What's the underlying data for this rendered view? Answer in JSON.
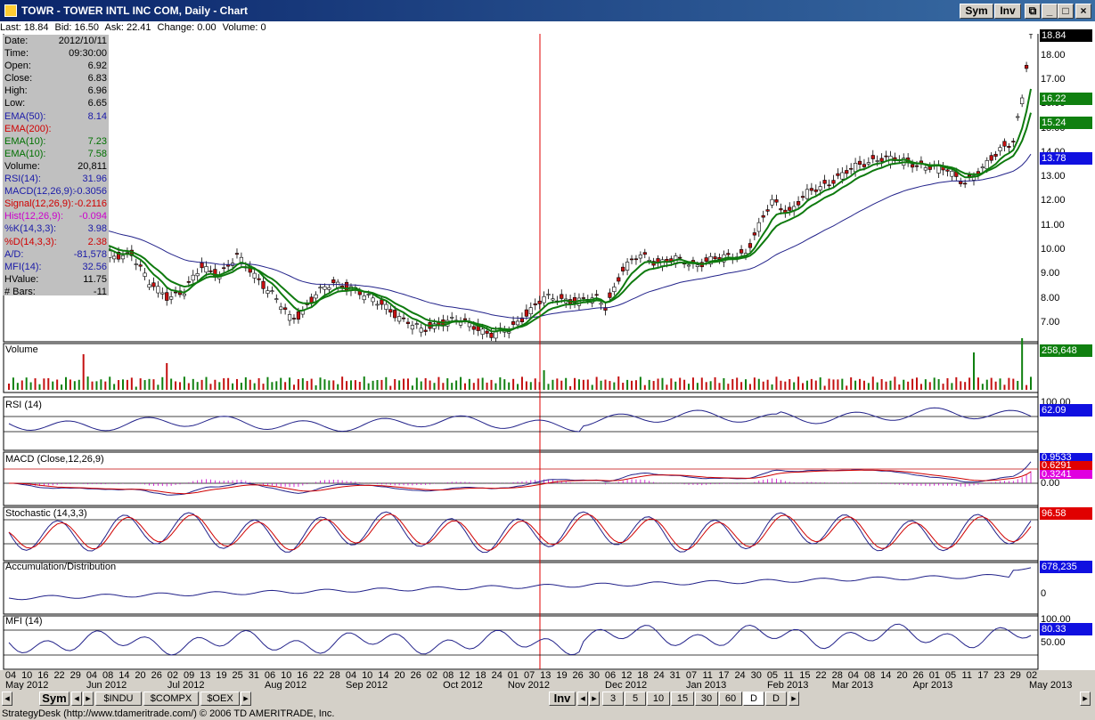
{
  "window": {
    "title": "TOWR - TOWER INTL INC COM, Daily - Chart",
    "buttons": {
      "sym": "Sym",
      "inv": "Inv"
    }
  },
  "quote": {
    "last": "Last: 18.84",
    "bid": "Bid: 16.50",
    "ask": "Ask: 22.41",
    "change": "Change: 0.00",
    "volume": "Volume: 0"
  },
  "info_rows": [
    {
      "k": "Date:",
      "v": "2012/10/11",
      "color": "#000000"
    },
    {
      "k": "Time:",
      "v": "09:30:00",
      "color": "#000000"
    },
    {
      "k": "Open:",
      "v": "6.92",
      "color": "#000000"
    },
    {
      "k": "Close:",
      "v": "6.83",
      "color": "#000000"
    },
    {
      "k": "High:",
      "v": "6.96",
      "color": "#000000"
    },
    {
      "k": "Low:",
      "v": "6.65",
      "color": "#000000"
    },
    {
      "k": "EMA(50):",
      "v": "8.14",
      "color": "#1a1aa8"
    },
    {
      "k": "EMA(200):",
      "v": "",
      "color": "#d00000"
    },
    {
      "k": "EMA(10):",
      "v": "7.23",
      "color": "#007000"
    },
    {
      "k": "EMA(10):",
      "v": "7.58",
      "color": "#007000"
    },
    {
      "k": "Volume:",
      "v": "20,811",
      "color": "#000000"
    },
    {
      "k": "RSI(14):",
      "v": "31.96",
      "color": "#1a1aa8"
    },
    {
      "k": "MACD(12,26,9):",
      "v": "-0.3056",
      "color": "#1a1aa8"
    },
    {
      "k": "Signal(12,26,9):",
      "v": "-0.2116",
      "color": "#d00000"
    },
    {
      "k": "Hist(12,26,9):",
      "v": "-0.094",
      "color": "#cc00cc"
    },
    {
      "k": "%K(14,3,3):",
      "v": "3.98",
      "color": "#1a1aa8"
    },
    {
      "k": "%D(14,3,3):",
      "v": "2.38",
      "color": "#d00000"
    },
    {
      "k": "A/D:",
      "v": "-81,578",
      "color": "#1a1aa8"
    },
    {
      "k": "MFI(14):",
      "v": "32.56",
      "color": "#1a1aa8"
    },
    {
      "k": "HValue:",
      "v": "11.75",
      "color": "#000000"
    },
    {
      "k": "# Bars:",
      "v": "-11",
      "color": "#000000"
    }
  ],
  "price_axis": [
    "18.00",
    "17.00",
    "16.00",
    "15.00",
    "14.00",
    "13.00",
    "12.00",
    "11.00",
    "10.00",
    "9.00",
    "8.00",
    "7.00"
  ],
  "price_tags": [
    {
      "label": "18.84",
      "bg": "#000000",
      "fg": "#ffffff"
    },
    {
      "label": "16.22",
      "bg": "#108010",
      "fg": "#ffffff"
    },
    {
      "label": "15.24",
      "bg": "#108010",
      "fg": "#ffffff"
    },
    {
      "label": "13.78",
      "bg": "#1010e0",
      "fg": "#ffffff"
    }
  ],
  "panels": {
    "volume": {
      "title": "Volume",
      "tag": "258,648"
    },
    "rsi": {
      "title": "RSI (14)",
      "axis": [
        "100.00"
      ],
      "tag": "62.09"
    },
    "macd": {
      "title": "MACD (Close,12,26,9)",
      "axis": [
        "0.00"
      ],
      "tags": [
        "0.9533",
        "0.6291",
        "0.3241"
      ]
    },
    "stoch": {
      "title": "Stochastic (14,3,3)",
      "tag": "96.58"
    },
    "ad": {
      "title": "Accumulation/Distribution",
      "axis": [
        "0"
      ],
      "tag": "678,235"
    },
    "mfi": {
      "title": "MFI (14)",
      "axis": [
        "100.00",
        "50.00"
      ],
      "tag": "80.33"
    }
  },
  "x_days": [
    "04",
    "10",
    "16",
    "22",
    "29",
    "04",
    "08",
    "14",
    "20",
    "26",
    "02",
    "09",
    "13",
    "19",
    "25",
    "31",
    "06",
    "10",
    "16",
    "22",
    "28",
    "04",
    "10",
    "14",
    "20",
    "26",
    "02",
    "08",
    "12",
    "18",
    "24",
    "01",
    "07",
    "13",
    "19",
    "26",
    "30",
    "06",
    "12",
    "18",
    "24",
    "31",
    "07",
    "11",
    "17",
    "24",
    "30",
    "05",
    "11",
    "15",
    "22",
    "28",
    "04",
    "08",
    "14",
    "20",
    "26",
    "01",
    "05",
    "11",
    "17",
    "23",
    "29",
    "02"
  ],
  "x_months": [
    {
      "label": "May 2012"
    },
    {
      "label": "Jun 2012"
    },
    {
      "label": "Jul 2012"
    },
    {
      "label": "Aug 2012"
    },
    {
      "label": "Sep 2012"
    },
    {
      "label": "Oct 2012"
    },
    {
      "label": "Nov 2012"
    },
    {
      "label": "Dec 2012"
    },
    {
      "label": "Jan 2013"
    },
    {
      "label": "Feb 2013"
    },
    {
      "label": "Mar 2013"
    },
    {
      "label": "Apr 2013"
    },
    {
      "label": "May 2013"
    }
  ],
  "bottom_tabs": {
    "sym": "Sym",
    "symbols": [
      "$INDU",
      "$COMPX",
      "$OEX"
    ],
    "inv": "Inv",
    "intervals": [
      "3",
      "5",
      "10",
      "15",
      "30",
      "60",
      "D",
      "D"
    ]
  },
  "status": "StrategyDesk (http://www.tdameritrade.com/) © 2006 TD AMERITRADE, Inc.",
  "chart_data": {
    "type": "candlestick",
    "ylim": [
      6.3,
      19.2
    ],
    "close_anchors": [
      [
        0,
        11.6
      ],
      [
        6,
        10.7
      ],
      [
        12,
        10.5
      ],
      [
        16,
        10.4
      ],
      [
        20,
        10.0
      ],
      [
        24,
        9.7
      ],
      [
        28,
        9.9
      ],
      [
        32,
        8.6
      ],
      [
        36,
        8.1
      ],
      [
        40,
        8.3
      ],
      [
        44,
        9.3
      ],
      [
        48,
        9.0
      ],
      [
        52,
        9.7
      ],
      [
        56,
        9.0
      ],
      [
        60,
        8.2
      ],
      [
        64,
        7.2
      ],
      [
        66,
        7.3
      ],
      [
        70,
        8.2
      ],
      [
        74,
        8.6
      ],
      [
        78,
        8.5
      ],
      [
        82,
        8.0
      ],
      [
        86,
        7.7
      ],
      [
        90,
        7.1
      ],
      [
        94,
        6.7
      ],
      [
        98,
        7.0
      ],
      [
        102,
        7.1
      ],
      [
        106,
        6.9
      ],
      [
        110,
        6.5
      ],
      [
        114,
        6.7
      ],
      [
        118,
        7.4
      ],
      [
        122,
        8.0
      ],
      [
        126,
        8.0
      ],
      [
        130,
        7.9
      ],
      [
        134,
        8.0
      ],
      [
        136,
        7.7
      ],
      [
        140,
        9.2
      ],
      [
        144,
        9.8
      ],
      [
        148,
        9.5
      ],
      [
        152,
        9.6
      ],
      [
        156,
        9.4
      ],
      [
        160,
        9.6
      ],
      [
        164,
        9.7
      ],
      [
        168,
        9.9
      ],
      [
        170,
        10.6
      ],
      [
        174,
        12.0
      ],
      [
        178,
        11.6
      ],
      [
        182,
        12.3
      ],
      [
        186,
        12.7
      ],
      [
        190,
        13.1
      ],
      [
        194,
        13.5
      ],
      [
        198,
        13.8
      ],
      [
        202,
        13.7
      ],
      [
        206,
        13.6
      ],
      [
        210,
        13.4
      ],
      [
        214,
        13.3
      ],
      [
        218,
        12.8
      ],
      [
        222,
        13.3
      ],
      [
        226,
        14.2
      ],
      [
        229,
        14.5
      ],
      [
        231,
        16.2
      ],
      [
        233,
        18.84
      ]
    ],
    "volume_spikes": [
      [
        17,
        40
      ],
      [
        36,
        30
      ],
      [
        122,
        22
      ],
      [
        220,
        42
      ],
      [
        231,
        58
      ]
    ]
  }
}
